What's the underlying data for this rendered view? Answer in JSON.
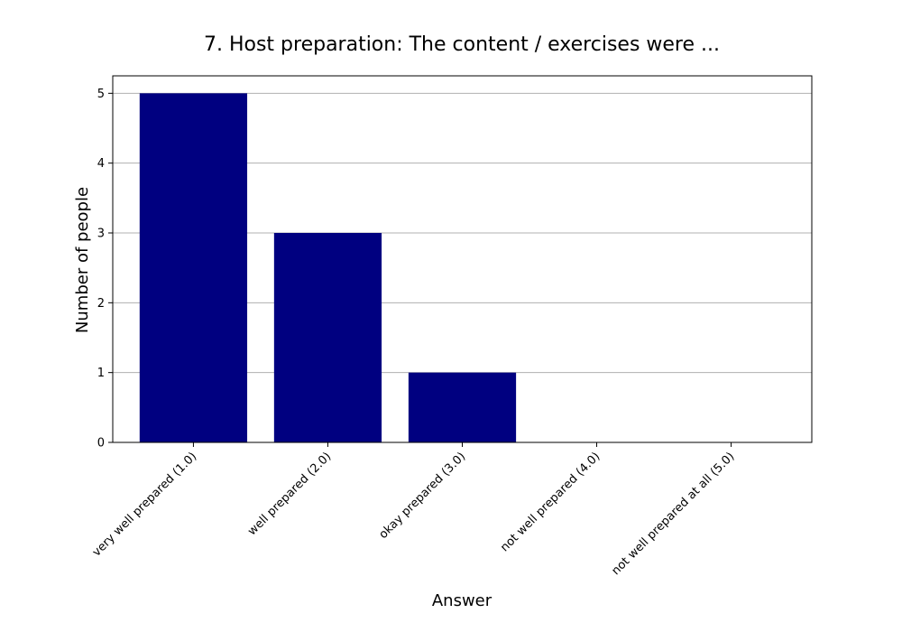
{
  "chart_data": {
    "type": "bar",
    "title": "7. Host preparation: The content / exercises were ...",
    "xlabel": "Answer",
    "ylabel": "Number of people",
    "categories": [
      "very well prepared (1.0)",
      "well prepared (2.0)",
      "okay prepared (3.0)",
      "not well prepared (4.0)",
      "not well prepared at all (5.0)"
    ],
    "values": [
      5,
      3,
      1,
      0,
      0
    ],
    "ylim": [
      0,
      5.25
    ],
    "yticks": [
      0,
      1,
      2,
      3,
      4,
      5
    ],
    "grid": "horizontal",
    "bar_color": "#000080",
    "grid_color": "#b0b0b0"
  }
}
